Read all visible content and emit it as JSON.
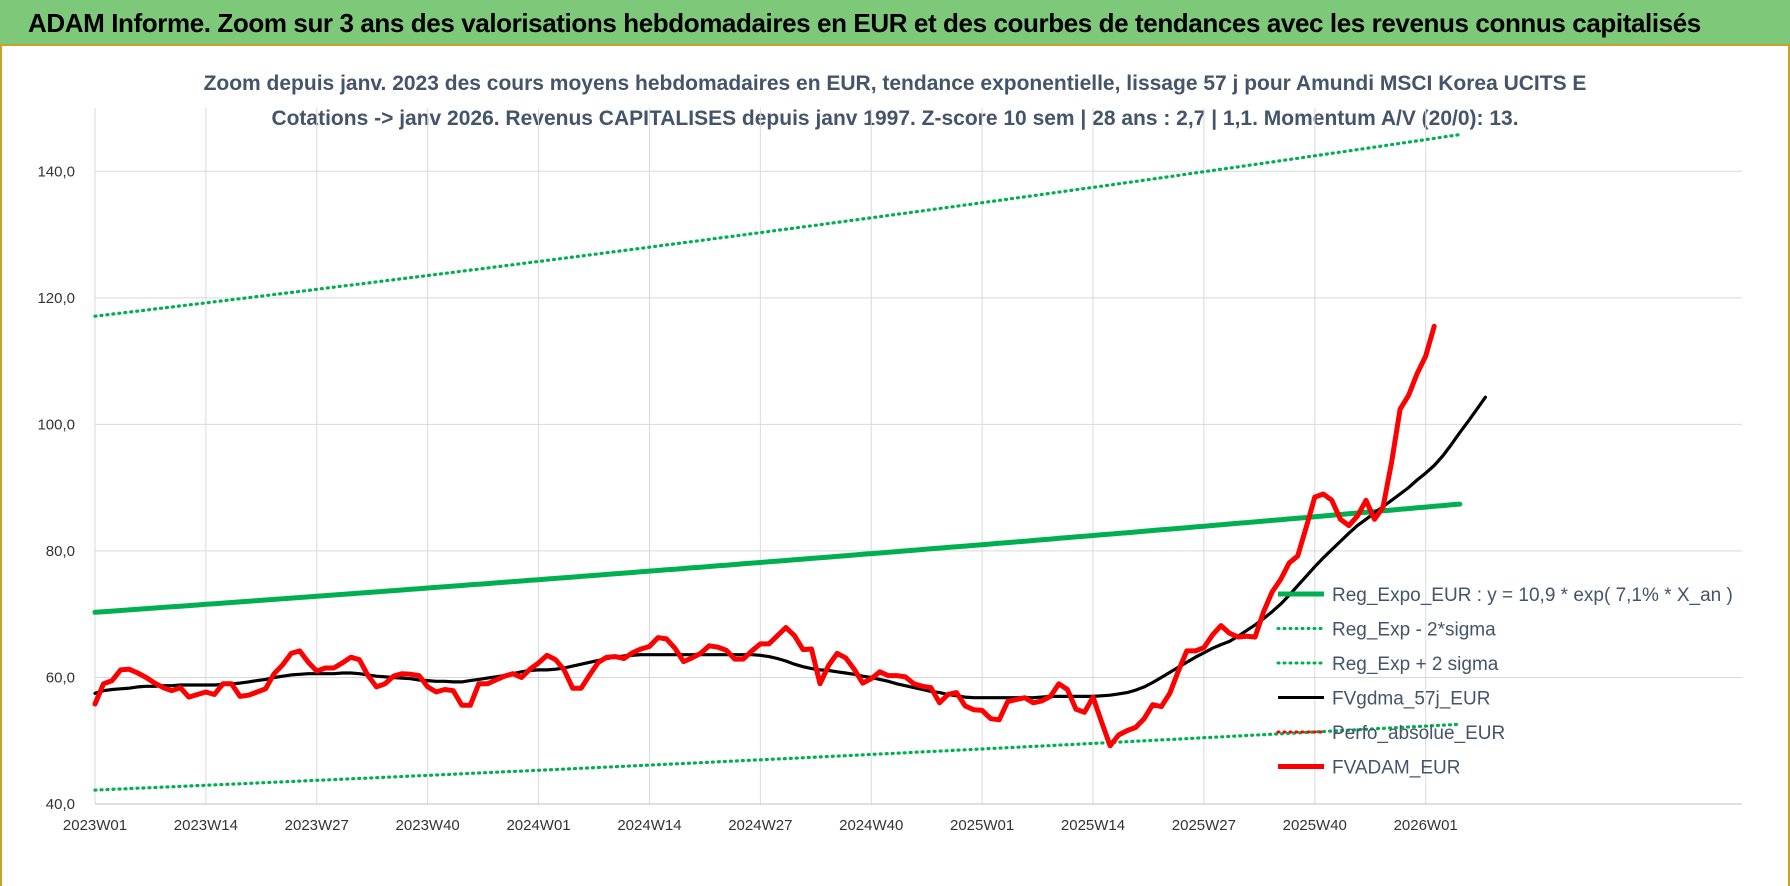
{
  "banner": {
    "title": "ADAM Informe. Zoom sur 3 ans des valorisations hebdomadaires en EUR et des courbes de tendances avec les revenus connus capitalisés"
  },
  "chart_data": {
    "type": "line",
    "title_line1": "Zoom depuis janv. 2023 des cours moyens hebdomadaires en EUR, tendance exponentielle, lissage 57 j pour Amundi MSCI Korea UCITS E",
    "title_line2": "Cotations -> janv 2026. Revenus CAPITALISES depuis janv 1997. Z-score 10 sem | 28 ans : 2,7 | 1,1. Momentum A/V (20/0): 13.",
    "ylim": [
      40,
      150
    ],
    "yticks": [
      40,
      60,
      80,
      100,
      120,
      140
    ],
    "ytick_labels": [
      "40,0",
      "60,0",
      "80,0",
      "100,0",
      "120,0",
      "140,0"
    ],
    "xtick_labels": [
      "2023W01",
      "2023W14",
      "2023W27",
      "2023W40",
      "2024W01",
      "2024W14",
      "2024W27",
      "2024W40",
      "2025W01",
      "2025W14",
      "2025W27",
      "2025W40",
      "2026W01"
    ],
    "xtick_index": [
      0,
      13,
      26,
      39,
      52,
      65,
      78,
      91,
      104,
      117,
      130,
      143,
      156
    ],
    "grid": true,
    "legend_position": "bottom-right",
    "series": [
      {
        "name": "Reg_Expo_EUR : y = 10,9 *  exp( 7,1% *  X_an )",
        "color": "#00b050",
        "style": "thick",
        "start": 70.3,
        "end": 87.4,
        "n": 161
      },
      {
        "name": "Reg_Exp - 2*sigma",
        "color": "#00b050",
        "style": "dotted",
        "start": 42.2,
        "end": 52.6,
        "n": 161
      },
      {
        "name": "Reg_Exp + 2 sigma",
        "color": "#00b050",
        "style": "dotted",
        "start": 117.1,
        "end": 145.8,
        "n": 161
      },
      {
        "name": "FVgdma_57j_EUR",
        "color": "#000000",
        "style": "solid",
        "values": [
          57.5,
          57.9,
          58.1,
          58.2,
          58.3,
          58.5,
          58.6,
          58.6,
          58.7,
          58.7,
          58.8,
          58.8,
          58.8,
          58.8,
          58.8,
          58.9,
          59.0,
          59.1,
          59.3,
          59.5,
          59.7,
          60.0,
          60.2,
          60.4,
          60.5,
          60.6,
          60.6,
          60.6,
          60.6,
          60.7,
          60.7,
          60.6,
          60.4,
          60.2,
          60.1,
          60.0,
          59.9,
          59.8,
          59.6,
          59.5,
          59.4,
          59.4,
          59.3,
          59.3,
          59.5,
          59.7,
          59.9,
          60.1,
          60.3,
          60.6,
          60.9,
          61.1,
          61.2,
          61.2,
          61.3,
          61.5,
          61.8,
          62.1,
          62.4,
          62.7,
          63.0,
          63.2,
          63.4,
          63.5,
          63.6,
          63.6,
          63.6,
          63.6,
          63.6,
          63.6,
          63.6,
          63.6,
          63.6,
          63.6,
          63.6,
          63.6,
          63.6,
          63.6,
          63.5,
          63.3,
          63.0,
          62.6,
          62.1,
          61.7,
          61.4,
          61.2,
          61.1,
          60.9,
          60.7,
          60.5,
          60.2,
          60.0,
          59.7,
          59.4,
          59.0,
          58.7,
          58.4,
          58.1,
          57.8,
          57.6,
          57.3,
          57.1,
          56.9,
          56.8,
          56.8,
          56.8,
          56.8,
          56.8,
          56.8,
          56.8,
          56.8,
          56.9,
          57.0,
          57.0,
          57.0,
          57.0,
          57.0,
          57.0,
          57.1,
          57.2,
          57.4,
          57.6,
          58.0,
          58.5,
          59.2,
          60.0,
          60.8,
          61.6,
          62.4,
          63.2,
          63.9,
          64.6,
          65.2,
          65.7,
          66.5,
          67.4,
          68.3,
          69.3,
          70.4,
          71.6,
          73.0,
          74.5,
          76.0,
          77.5,
          78.9,
          80.2,
          81.5,
          82.8,
          84.0,
          85.0,
          86.0,
          87.0,
          88.0,
          89.0,
          90.0,
          91.2,
          92.3,
          93.5,
          95.0,
          96.8,
          98.7,
          100.5,
          102.4,
          104.3
        ]
      },
      {
        "name": "Perfo_absolue_EUR",
        "color": "#ff0000",
        "style": "dotted-legend-only"
      },
      {
        "name": "FVADAM_EUR",
        "color": "#ff0000",
        "style": "thick",
        "values": [
          55.8,
          59.0,
          59.5,
          61.2,
          61.3,
          60.7,
          60.0,
          59.1,
          58.4,
          57.9,
          58.4,
          56.9,
          57.3,
          57.7,
          57.3,
          59.0,
          59.0,
          57.0,
          57.2,
          57.7,
          58.2,
          60.6,
          62.0,
          63.8,
          64.2,
          62.4,
          61.0,
          61.5,
          61.5,
          62.3,
          63.2,
          62.8,
          60.3,
          58.5,
          59.0,
          60.2,
          60.6,
          60.5,
          60.3,
          58.5,
          57.7,
          58.1,
          57.9,
          55.6,
          55.6,
          59.0,
          59.0,
          59.6,
          60.2,
          60.6,
          60.0,
          61.3,
          62.3,
          63.5,
          62.8,
          61.2,
          58.3,
          58.3,
          60.4,
          62.4,
          63.2,
          63.3,
          63.0,
          63.9,
          64.5,
          64.9,
          66.3,
          66.1,
          64.6,
          62.5,
          63.1,
          63.8,
          65.0,
          64.8,
          64.3,
          62.9,
          62.9,
          64.2,
          65.3,
          65.3,
          66.6,
          67.9,
          66.6,
          64.4,
          64.5,
          59.0,
          61.9,
          63.8,
          63.1,
          61.3,
          59.1,
          59.8,
          60.9,
          60.3,
          60.3,
          60.1,
          59.0,
          58.6,
          58.4,
          56.0,
          57.3,
          57.6,
          55.5,
          54.9,
          54.8,
          53.5,
          53.3,
          56.2,
          56.5,
          56.8,
          56.0,
          56.3,
          57.0,
          59.0,
          58.1,
          55.0,
          54.5,
          56.9,
          53.0,
          49.2,
          50.9,
          51.6,
          52.1,
          53.5,
          55.7,
          55.4,
          57.5,
          61.0,
          64.2,
          64.2,
          64.7,
          66.7,
          68.2,
          67.0,
          66.4,
          66.5,
          66.4,
          70.4,
          73.5,
          75.5,
          78.1,
          79.2,
          83.8,
          88.5,
          89.0,
          88.0,
          85.0,
          84.0,
          85.5,
          88.0,
          85.0,
          86.9,
          94.0,
          102.4,
          104.6,
          108.0,
          110.8,
          115.5
        ]
      }
    ]
  }
}
